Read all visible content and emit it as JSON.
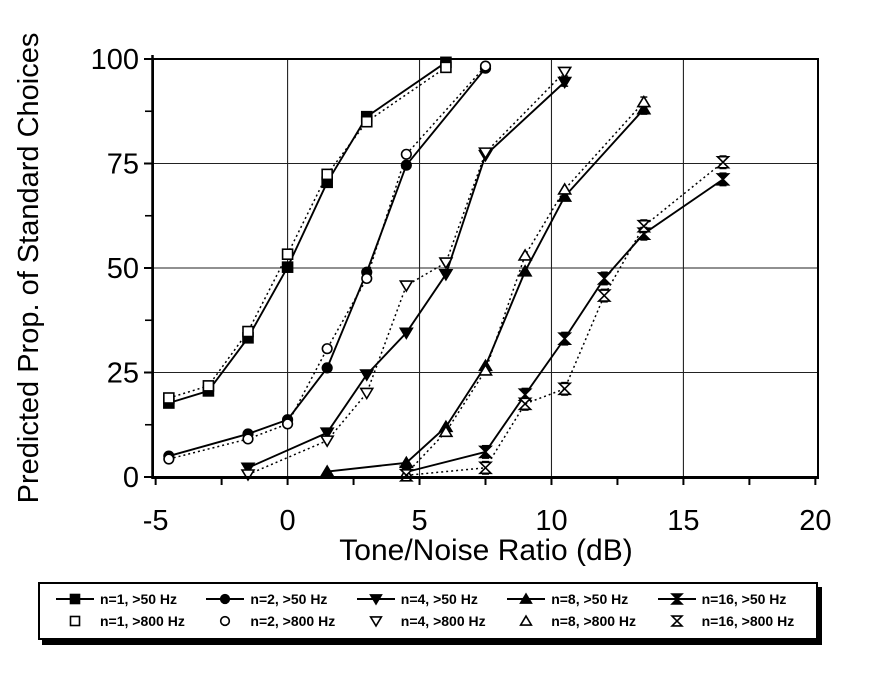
{
  "chart_data": {
    "type": "line",
    "title": "",
    "xlabel": "Tone/Noise Ratio (dB)",
    "ylabel": "Predicted Prop. of Standard Choices",
    "xlim": [
      -5.1,
      20.1
    ],
    "ylim": [
      0,
      100
    ],
    "x_ticks": [
      -5,
      0,
      5,
      10,
      15,
      20
    ],
    "x_minor_ticks": [
      -2.5,
      2.5,
      7.5,
      12.5,
      17.5
    ],
    "y_ticks": [
      0,
      25,
      50,
      75,
      100
    ],
    "y_minor_ticks": [
      12.5,
      37.5,
      62.5,
      87.5
    ],
    "x_gridlines": [
      0,
      5,
      10,
      15
    ],
    "y_gridlines": [
      25,
      50,
      75
    ],
    "grid": true,
    "legend_position": "bottom",
    "line_color": "#000000",
    "background_color": "#ffffff",
    "series": [
      {
        "name": "n=1, >50 Hz",
        "marker": "square",
        "fill": "filled",
        "line": "solid",
        "points": [
          [
            -4.5,
            17.7
          ],
          [
            -3,
            20.6
          ],
          [
            -1.5,
            33.3
          ],
          [
            0,
            50.2
          ],
          [
            1.5,
            70.5
          ],
          [
            3,
            86.2
          ],
          [
            6,
            99.2
          ]
        ]
      },
      {
        "name": "n=2, >50 Hz",
        "marker": "circle",
        "fill": "filled",
        "line": "solid",
        "points": [
          [
            -4.5,
            5.0
          ],
          [
            -1.5,
            10.3
          ],
          [
            0,
            13.7
          ],
          [
            1.5,
            26.1
          ],
          [
            3,
            49.0
          ],
          [
            4.5,
            74.6
          ],
          [
            7.5,
            97.8
          ]
        ]
      },
      {
        "name": "n=4, >50 Hz",
        "marker": "triangle-down",
        "fill": "filled",
        "line": "solid",
        "points": [
          [
            -1.5,
            2.2
          ],
          [
            1.5,
            10.6
          ],
          [
            3,
            24.5
          ],
          [
            4.5,
            34.5
          ],
          [
            6,
            48.5
          ],
          [
            7.5,
            77.0
          ],
          [
            10.5,
            94.5,
            1
          ]
        ]
      },
      {
        "name": "n=8, >50 Hz",
        "marker": "triangle-up",
        "fill": "filled",
        "line": "solid",
        "points": [
          [
            1.5,
            1.3
          ],
          [
            4.5,
            3.4
          ],
          [
            6,
            12.0
          ],
          [
            7.5,
            26.6
          ],
          [
            9,
            49.2
          ],
          [
            10.5,
            67.1
          ],
          [
            13.5,
            88.0,
            1.2
          ]
        ]
      },
      {
        "name": "n=16, >50 Hz",
        "marker": "hourglass",
        "fill": "filled",
        "line": "solid",
        "points": [
          [
            4.5,
            1.2,
            1
          ],
          [
            7.5,
            6.0,
            1.5
          ],
          [
            9,
            19.7,
            1.5
          ],
          [
            10.5,
            33.1,
            1.5
          ],
          [
            12,
            47.5,
            1.5
          ],
          [
            13.5,
            58.2,
            1.5
          ],
          [
            16.5,
            71.2,
            1.5
          ]
        ]
      },
      {
        "name": "n=1, >800 Hz",
        "marker": "square",
        "fill": "open",
        "line": "dotted",
        "points": [
          [
            -4.5,
            18.9
          ],
          [
            -3,
            21.8
          ],
          [
            -1.5,
            34.8
          ],
          [
            0,
            53.3
          ],
          [
            1.5,
            72.4
          ],
          [
            3,
            85.0
          ],
          [
            6,
            98.0
          ]
        ]
      },
      {
        "name": "n=2, >800 Hz",
        "marker": "circle",
        "fill": "open",
        "line": "dotted",
        "points": [
          [
            -4.5,
            4.3
          ],
          [
            -1.5,
            9.1
          ],
          [
            0,
            12.7
          ],
          [
            1.5,
            30.7
          ],
          [
            3,
            47.5
          ],
          [
            4.5,
            77.2
          ],
          [
            7.5,
            98.3
          ]
        ]
      },
      {
        "name": "n=4, >800 Hz",
        "marker": "triangle-down",
        "fill": "open",
        "line": "dotted",
        "points": [
          [
            -1.5,
            0.6
          ],
          [
            1.5,
            8.7
          ],
          [
            3,
            20.1
          ],
          [
            4.5,
            45.8
          ],
          [
            6,
            51.3
          ],
          [
            7.5,
            77.6
          ],
          [
            10.5,
            96.9,
            1
          ]
        ]
      },
      {
        "name": "n=8, >800 Hz",
        "marker": "triangle-up",
        "fill": "open",
        "line": "dotted",
        "points": [
          [
            4.5,
            0.8
          ],
          [
            6,
            10.8
          ],
          [
            7.5,
            25.5
          ],
          [
            9,
            53.0
          ],
          [
            10.5,
            68.8
          ],
          [
            13.5,
            89.7,
            1.2
          ]
        ]
      },
      {
        "name": "n=16, >800 Hz",
        "marker": "hourglass",
        "fill": "open",
        "line": "dotted",
        "points": [
          [
            4.5,
            0.4,
            1
          ],
          [
            7.5,
            2.2,
            1.5
          ],
          [
            9,
            17.5,
            1.5
          ],
          [
            10.5,
            21.1,
            1.5
          ],
          [
            12,
            43.4,
            1.5
          ],
          [
            13.5,
            60.0,
            1.5
          ],
          [
            16.5,
            75.3,
            1.5
          ]
        ]
      }
    ]
  },
  "legend": {
    "row1_indices": [
      0,
      1,
      2,
      3,
      4
    ],
    "row2_indices": [
      5,
      6,
      7,
      8,
      9
    ]
  }
}
